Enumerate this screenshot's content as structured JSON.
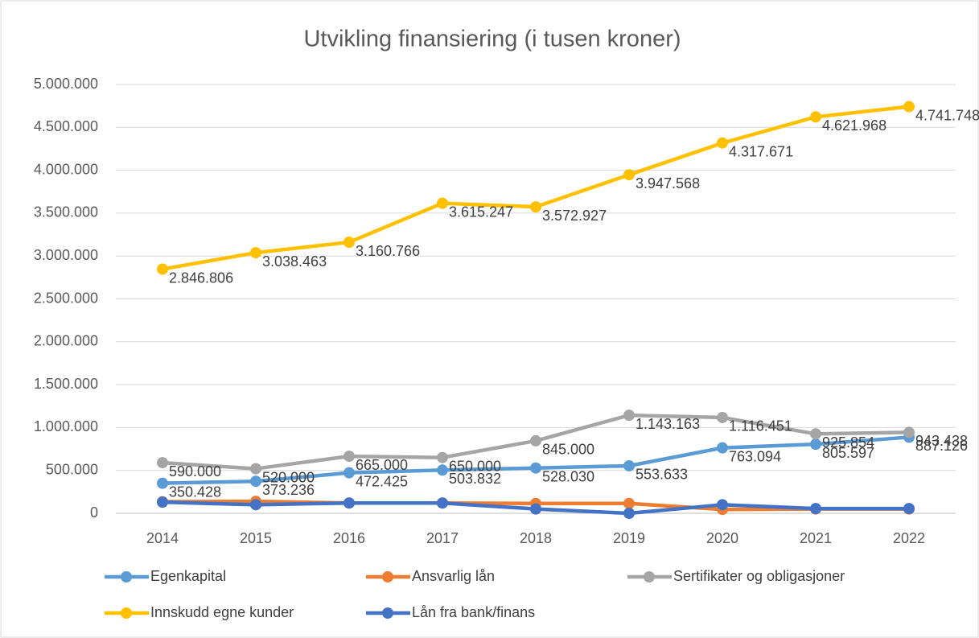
{
  "chart_data": {
    "type": "line",
    "title": "Utvikling finansiering (i tusen kroner)",
    "categories": [
      "2014",
      "2015",
      "2016",
      "2017",
      "2018",
      "2019",
      "2020",
      "2021",
      "2022"
    ],
    "series": [
      {
        "name": "Egenkapital",
        "color": "#5b9bd5",
        "values": [
          350428,
          373236,
          472425,
          503832,
          528030,
          553633,
          763094,
          805597,
          887126
        ],
        "value_labels": [
          "350.428",
          "373.236",
          "472.425",
          "503.832",
          "528.030",
          "553.633",
          "763.094",
          "805.597",
          "887.126"
        ]
      },
      {
        "name": "Ansvarlig lån",
        "color": "#ed7d31",
        "values": [
          135000,
          140000,
          120000,
          120000,
          115000,
          115000,
          45000,
          50000,
          50000
        ]
      },
      {
        "name": "Sertifikater og obligasjoner",
        "color": "#a5a5a5",
        "values": [
          590000,
          520000,
          665000,
          650000,
          845000,
          1143163,
          1116451,
          925854,
          943438
        ],
        "value_labels": [
          "590.000",
          "520.000",
          "665.000",
          "650.000",
          "845.000",
          "1.143.163",
          "1.116.451",
          "925.854",
          "943.438"
        ]
      },
      {
        "name": "Innskudd egne kunder",
        "color": "#ffc000",
        "values": [
          2846806,
          3038463,
          3160766,
          3615247,
          3572927,
          3947568,
          4317671,
          4621968,
          4741748
        ],
        "value_labels": [
          "2.846.806",
          "3.038.463",
          "3.160.766",
          "3.615.247",
          "3.572.927",
          "3.947.568",
          "4.317.671",
          "4.621.968",
          "4.741.748"
        ]
      },
      {
        "name": "Lån fra bank/finans",
        "color": "#4472c4",
        "values": [
          130000,
          100000,
          120000,
          120000,
          50000,
          0,
          100000,
          55000,
          55000
        ]
      }
    ],
    "ylim": [
      0,
      5000000
    ],
    "yticks": [
      0,
      {
        "value": 500000,
        "label": "500.000"
      },
      {
        "value": 1000000,
        "label": "1.000.000"
      },
      {
        "value": 1500000,
        "label": "1.500.000"
      },
      {
        "value": 2000000,
        "label": "2.000.000"
      },
      {
        "value": 2500000,
        "label": "2.500.000"
      },
      {
        "value": 3000000,
        "label": "3.000.000"
      },
      {
        "value": 3500000,
        "label": "3.500.000"
      },
      {
        "value": 4000000,
        "label": "4.000.000"
      },
      {
        "value": 4500000,
        "label": "4.500.000"
      },
      {
        "value": 5000000,
        "label": "5.000.000"
      }
    ],
    "grid": true,
    "legend": "bottom"
  }
}
